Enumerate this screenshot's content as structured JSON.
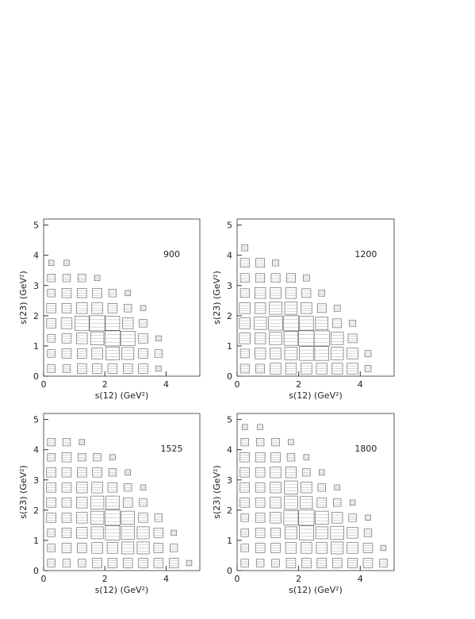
{
  "chart_data": [
    {
      "type": "box2d",
      "annotation": "900",
      "xlabel": "s(12) (GeV²)",
      "ylabel": "s(23) (GeV²)",
      "xlim": [
        0,
        5.1
      ],
      "ylim": [
        0,
        5.2
      ],
      "xticks": [
        0,
        2,
        4
      ],
      "yticks": [
        0,
        1,
        2,
        3,
        4,
        5
      ],
      "xbins": [
        0,
        0.5,
        1,
        1.5,
        2,
        2.5,
        3,
        3.5,
        4,
        4.5,
        5
      ],
      "ybins": [
        0,
        0.5,
        1,
        1.5,
        2,
        2.5,
        3,
        3.5,
        4,
        4.5,
        5
      ],
      "z": [
        [
          2,
          2,
          3,
          3,
          3,
          3,
          3,
          1,
          0,
          0
        ],
        [
          2,
          3,
          3,
          4,
          6,
          5,
          3,
          2,
          0,
          0
        ],
        [
          2,
          3,
          4,
          6,
          8,
          7,
          3,
          1,
          0,
          0
        ],
        [
          3,
          4,
          7,
          8,
          7,
          4,
          2,
          0,
          0,
          0
        ],
        [
          3,
          3,
          4,
          4,
          3,
          2,
          1,
          0,
          0,
          0
        ],
        [
          2,
          3,
          3,
          3,
          2,
          1,
          0,
          0,
          0,
          0
        ],
        [
          2,
          2,
          2,
          1,
          0,
          0,
          0,
          0,
          0,
          0
        ],
        [
          1,
          1,
          0,
          0,
          0,
          0,
          0,
          0,
          0,
          0
        ],
        [
          0,
          0,
          0,
          0,
          0,
          0,
          0,
          0,
          0,
          0
        ],
        [
          0,
          0,
          0,
          0,
          0,
          0,
          0,
          0,
          0,
          0
        ]
      ]
    },
    {
      "type": "box2d",
      "annotation": "1200",
      "xlabel": "s(12) (GeV²)",
      "ylabel": "s(23) (GeV²)",
      "xlim": [
        0,
        5.1
      ],
      "ylim": [
        0,
        5.2
      ],
      "xticks": [
        0,
        2,
        4
      ],
      "yticks": [
        0,
        1,
        2,
        3,
        4,
        5
      ],
      "xbins": [
        0,
        0.5,
        1,
        1.5,
        2,
        2.5,
        3,
        3.5,
        4,
        4.5,
        5
      ],
      "ybins": [
        0,
        0.5,
        1,
        1.5,
        2,
        2.5,
        3,
        3.5,
        4,
        4.5,
        5
      ],
      "z": [
        [
          2,
          2,
          3,
          3,
          3,
          3,
          3,
          3,
          1,
          0
        ],
        [
          2,
          3,
          3,
          4,
          5,
          5,
          4,
          3,
          1,
          0
        ],
        [
          3,
          3,
          4,
          5,
          6,
          6,
          4,
          2,
          0,
          0
        ],
        [
          3,
          4,
          5,
          6,
          5,
          4,
          2,
          1,
          0,
          0
        ],
        [
          3,
          3,
          4,
          4,
          3,
          2,
          1,
          0,
          0,
          0
        ],
        [
          2,
          3,
          3,
          3,
          2,
          1,
          0,
          0,
          0,
          0
        ],
        [
          2,
          2,
          2,
          2,
          1,
          0,
          0,
          0,
          0,
          0
        ],
        [
          2,
          2,
          1,
          0,
          0,
          0,
          0,
          0,
          0,
          0
        ],
        [
          1,
          0,
          0,
          0,
          0,
          0,
          0,
          0,
          0,
          0
        ],
        [
          0,
          0,
          0,
          0,
          0,
          0,
          0,
          0,
          0,
          0
        ]
      ]
    },
    {
      "type": "box2d",
      "annotation": "1525",
      "xlabel": "s(12) (GeV²)",
      "ylabel": "s(23) (GeV²)",
      "xlim": [
        0,
        5.1
      ],
      "ylim": [
        0,
        5.2
      ],
      "xticks": [
        0,
        2,
        4
      ],
      "yticks": [
        0,
        1,
        2,
        3,
        4,
        5
      ],
      "xbins": [
        0,
        0.5,
        1,
        1.5,
        2,
        2.5,
        3,
        3.5,
        4,
        4.5,
        5
      ],
      "ybins": [
        0,
        0.5,
        1,
        1.5,
        2,
        2.5,
        3,
        3.5,
        4,
        4.5,
        5
      ],
      "z": [
        [
          2,
          2,
          2,
          3,
          3,
          3,
          3,
          3,
          3,
          1
        ],
        [
          2,
          3,
          3,
          4,
          4,
          5,
          5,
          3,
          2,
          0
        ],
        [
          2,
          3,
          4,
          5,
          7,
          6,
          5,
          3,
          1,
          0
        ],
        [
          3,
          3,
          4,
          6,
          8,
          6,
          3,
          2,
          0,
          0
        ],
        [
          3,
          3,
          4,
          6,
          6,
          3,
          2,
          0,
          0,
          0
        ],
        [
          3,
          3,
          4,
          4,
          3,
          2,
          1,
          0,
          0,
          0
        ],
        [
          3,
          3,
          3,
          3,
          2,
          1,
          0,
          0,
          0,
          0
        ],
        [
          2,
          3,
          2,
          2,
          1,
          0,
          0,
          0,
          0,
          0
        ],
        [
          2,
          2,
          1,
          0,
          0,
          0,
          0,
          0,
          0,
          0
        ],
        [
          0,
          0,
          0,
          0,
          0,
          0,
          0,
          0,
          0,
          0
        ]
      ]
    },
    {
      "type": "box2d",
      "annotation": "1800",
      "xlabel": "s(12) (GeV²)",
      "ylabel": "s(23) (GeV²)",
      "xlim": [
        0,
        5.1
      ],
      "ylim": [
        0,
        5.2
      ],
      "xticks": [
        0,
        2,
        4
      ],
      "yticks": [
        0,
        1,
        2,
        3,
        4,
        5
      ],
      "xbins": [
        0,
        0.5,
        1,
        1.5,
        2,
        2.5,
        3,
        3.5,
        4,
        4.5,
        5
      ],
      "ybins": [
        0,
        0.5,
        1,
        1.5,
        2,
        2.5,
        3,
        3.5,
        4,
        4.5,
        5
      ],
      "z": [
        [
          2,
          2,
          2,
          3,
          3,
          3,
          3,
          3,
          3,
          2
        ],
        [
          2,
          3,
          3,
          4,
          4,
          4,
          5,
          4,
          3,
          1
        ],
        [
          2,
          3,
          3,
          5,
          7,
          5,
          6,
          4,
          2,
          0
        ],
        [
          2,
          3,
          4,
          7,
          8,
          6,
          4,
          2,
          1,
          0
        ],
        [
          3,
          3,
          4,
          6,
          5,
          3,
          2,
          1,
          0,
          0
        ],
        [
          3,
          3,
          4,
          6,
          4,
          2,
          1,
          0,
          0,
          0
        ],
        [
          3,
          3,
          4,
          4,
          2,
          1,
          0,
          0,
          0,
          0
        ],
        [
          3,
          3,
          3,
          2,
          1,
          0,
          0,
          0,
          0,
          0
        ],
        [
          2,
          2,
          2,
          1,
          0,
          0,
          0,
          0,
          0,
          0
        ],
        [
          1,
          1,
          0,
          0,
          0,
          0,
          0,
          0,
          0,
          0
        ]
      ]
    }
  ]
}
